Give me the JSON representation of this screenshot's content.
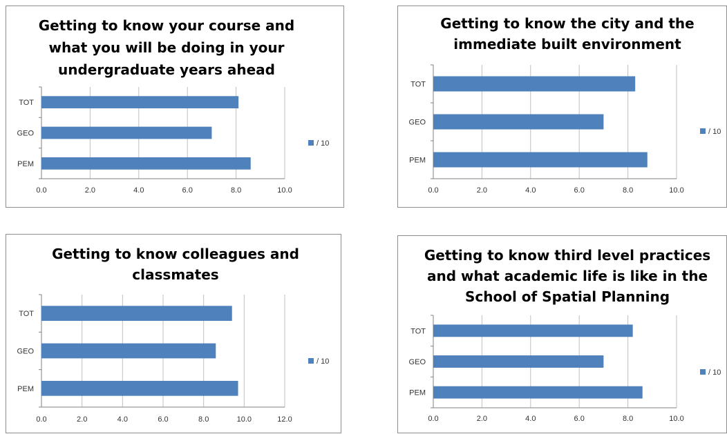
{
  "chart_data": [
    {
      "type": "bar",
      "orientation": "horizontal",
      "title_lines": [
        "Getting to know your course and",
        "what you will be doing in your",
        "undergraduate years ahead"
      ],
      "categories": [
        "TOT",
        "GEO",
        "PEM"
      ],
      "series": [
        {
          "name": "/ 10",
          "values": [
            8.1,
            7.0,
            8.6
          ],
          "color": "#4f81bd"
        }
      ],
      "xlim": [
        0,
        10
      ],
      "xticks": [
        "0.0",
        "2.0",
        "4.0",
        "6.0",
        "8.0",
        "10.0"
      ],
      "grid": true,
      "legend": "right"
    },
    {
      "type": "bar",
      "orientation": "horizontal",
      "title_lines": [
        "Getting to know the city and the",
        "immediate built environment"
      ],
      "categories": [
        "TOT",
        "GEO",
        "PEM"
      ],
      "series": [
        {
          "name": "/ 10",
          "values": [
            8.3,
            7.0,
            8.8
          ],
          "color": "#4f81bd"
        }
      ],
      "xlim": [
        0,
        10
      ],
      "xticks": [
        "0.0",
        "2.0",
        "4.0",
        "6.0",
        "8.0",
        "10.0"
      ],
      "grid": true,
      "legend": "right"
    },
    {
      "type": "bar",
      "orientation": "horizontal",
      "title_lines": [
        "Getting to know colleagues and",
        "classmates"
      ],
      "categories": [
        "TOT",
        "GEO",
        "PEM"
      ],
      "series": [
        {
          "name": "/ 10",
          "values": [
            9.4,
            8.6,
            9.7
          ],
          "color": "#4f81bd"
        }
      ],
      "xlim": [
        0,
        12
      ],
      "xticks": [
        "0.0",
        "2.0",
        "4.0",
        "6.0",
        "8.0",
        "10.0",
        "12.0"
      ],
      "grid": true,
      "legend": "right"
    },
    {
      "type": "bar",
      "orientation": "horizontal",
      "title_lines": [
        "Getting to know third level practices",
        "and what academic life is like in the",
        "School of Spatial Planning"
      ],
      "categories": [
        "TOT",
        "GEO",
        "PEM"
      ],
      "series": [
        {
          "name": "/ 10",
          "values": [
            8.2,
            7.0,
            8.6
          ],
          "color": "#4f81bd"
        }
      ],
      "xlim": [
        0,
        10
      ],
      "xticks": [
        "0.0",
        "2.0",
        "4.0",
        "6.0",
        "8.0",
        "10.0"
      ],
      "grid": true,
      "legend": "right"
    }
  ]
}
